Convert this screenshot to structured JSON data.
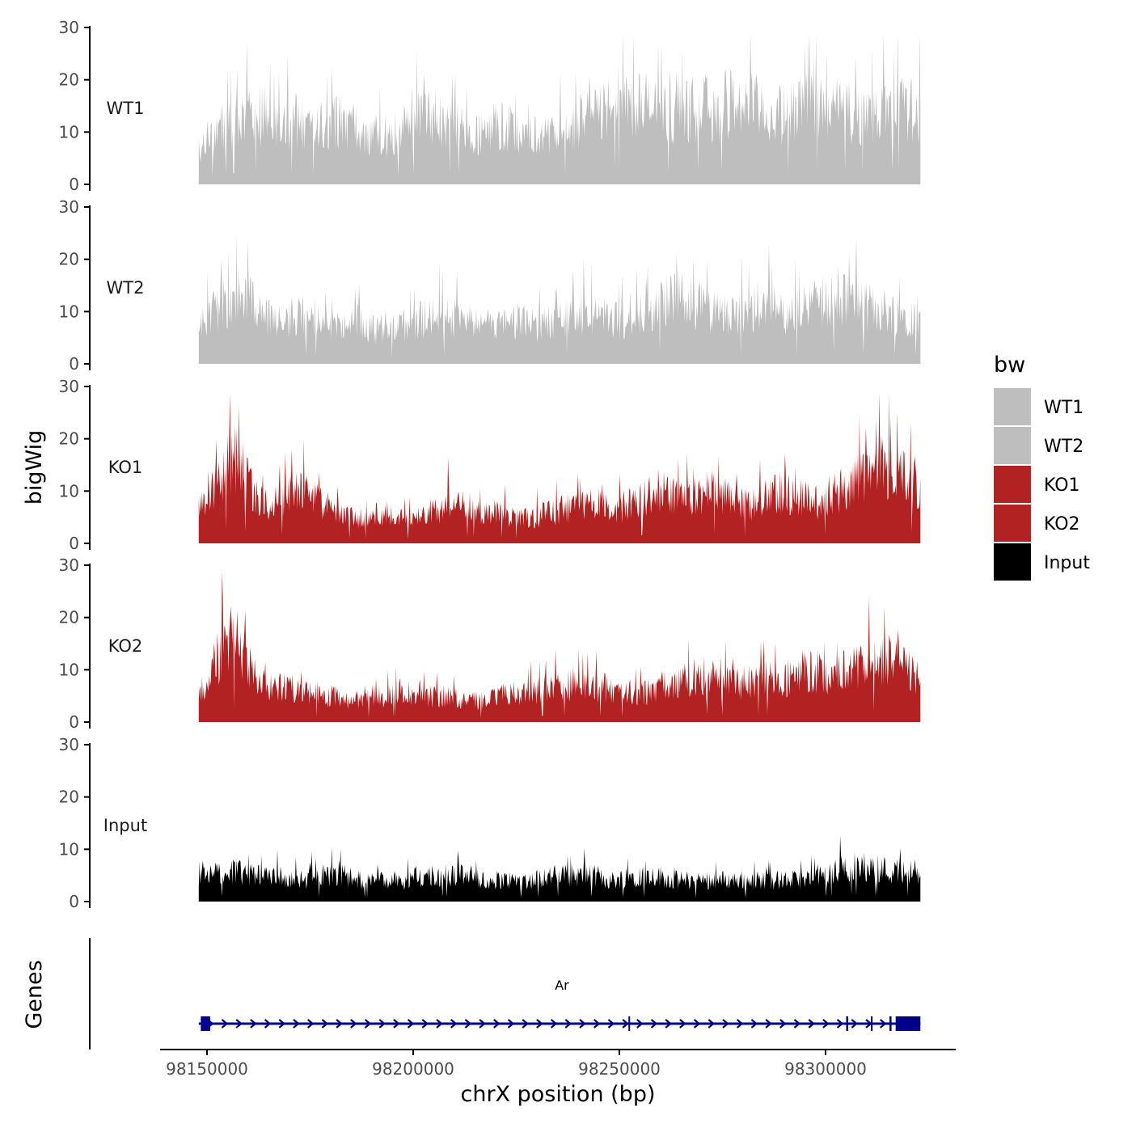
{
  "chart_data": {
    "type": "area",
    "title": "",
    "xlabel": "chrX position (bp)",
    "ylabel": "bigWig",
    "genes_axis_label": "Genes",
    "xlim": [
      98127000,
      98330000
    ],
    "data_xrange": [
      98148000,
      98323000
    ],
    "ylim": [
      0,
      30
    ],
    "y_ticks": [
      0,
      10,
      20,
      30
    ],
    "x_ticks": [
      98150000,
      98200000,
      98250000,
      98300000
    ],
    "x_tick_labels": [
      "98150000",
      "98200000",
      "98250000",
      "98300000"
    ],
    "series": [
      {
        "name": "WT1",
        "label": "WT1",
        "color": "#bebebe",
        "values": [
          8,
          11,
          13,
          14,
          15,
          16,
          16,
          15,
          14,
          15,
          14,
          13,
          14,
          15,
          14,
          13,
          12,
          12,
          11,
          12,
          13,
          15,
          16,
          15,
          14,
          13,
          12,
          12,
          13,
          14,
          13,
          12,
          11,
          11,
          12,
          13,
          14,
          15,
          16,
          18,
          19,
          20,
          19,
          18,
          17,
          16,
          16,
          17,
          18,
          17,
          18,
          19,
          19,
          18,
          17,
          16,
          16,
          17,
          18,
          19,
          18,
          18,
          17,
          16,
          16,
          17,
          18,
          18,
          17,
          17
        ]
      },
      {
        "name": "WT2",
        "label": "WT2",
        "color": "#bebebe",
        "values": [
          8,
          11,
          13,
          15,
          16,
          14,
          12,
          11,
          10,
          11,
          11,
          10,
          9,
          9,
          10,
          10,
          9,
          8,
          8,
          9,
          9,
          10,
          11,
          12,
          11,
          10,
          10,
          9,
          9,
          9,
          10,
          10,
          9,
          9,
          10,
          11,
          12,
          12,
          11,
          11,
          10,
          10,
          11,
          12,
          13,
          15,
          16,
          15,
          13,
          12,
          11,
          11,
          12,
          13,
          14,
          13,
          12,
          12,
          13,
          14,
          15,
          16,
          15,
          14,
          13,
          13,
          12,
          12,
          11,
          10
        ]
      },
      {
        "name": "KO1",
        "label": "KO1",
        "color": "#b22222",
        "values": [
          7,
          12,
          15,
          20,
          18,
          13,
          10,
          9,
          11,
          12,
          13,
          11,
          9,
          8,
          7,
          6,
          6,
          7,
          6,
          6,
          5,
          6,
          7,
          8,
          10,
          9,
          8,
          7,
          7,
          7,
          6,
          6,
          6,
          7,
          7,
          8,
          8,
          9,
          9,
          8,
          8,
          9,
          10,
          11,
          12,
          11,
          10,
          10,
          11,
          12,
          11,
          10,
          9,
          9,
          10,
          11,
          12,
          11,
          10,
          10,
          11,
          12,
          13,
          15,
          16,
          17,
          18,
          17,
          15,
          13
        ]
      },
      {
        "name": "KO2",
        "label": "KO2",
        "color": "#b22222",
        "values": [
          5,
          10,
          16,
          20,
          17,
          12,
          9,
          8,
          8,
          8,
          7,
          7,
          6,
          6,
          5,
          5,
          6,
          6,
          6,
          7,
          7,
          7,
          6,
          6,
          6,
          5,
          5,
          5,
          6,
          6,
          7,
          7,
          7,
          8,
          8,
          8,
          9,
          9,
          8,
          8,
          7,
          7,
          7,
          7,
          8,
          9,
          10,
          10,
          11,
          10,
          9,
          9,
          9,
          10,
          10,
          10,
          10,
          11,
          12,
          12,
          11,
          11,
          12,
          13,
          14,
          15,
          14,
          13,
          12,
          10
        ]
      },
      {
        "name": "Input",
        "label": "Input",
        "color": "#000000",
        "values": [
          5,
          6,
          7,
          7,
          7,
          6,
          6,
          6,
          6,
          5,
          5,
          6,
          6,
          6,
          6,
          5,
          5,
          5,
          5,
          5,
          5,
          6,
          6,
          6,
          6,
          6,
          6,
          5,
          5,
          5,
          5,
          5,
          5,
          6,
          6,
          6,
          6,
          6,
          6,
          5,
          5,
          6,
          6,
          6,
          6,
          5,
          5,
          5,
          5,
          5,
          5,
          5,
          5,
          5,
          5,
          5,
          5,
          5,
          5,
          6,
          6,
          7,
          8,
          8,
          8,
          8,
          7,
          7,
          7,
          5
        ]
      }
    ],
    "gene": {
      "name": "Ar",
      "start": 98148000,
      "end": 98323000,
      "strand": "+",
      "exons": [
        [
          98148500,
          98150800
        ],
        [
          98252200,
          98252600
        ],
        [
          98305000,
          98305500
        ],
        [
          98311000,
          98311400
        ],
        [
          98315500,
          98316000
        ],
        [
          98317000,
          98323000
        ]
      ],
      "color": "#00008b"
    },
    "legend": {
      "title": "bw",
      "position": "right",
      "entries": [
        {
          "label": "WT1",
          "color": "#bebebe"
        },
        {
          "label": "WT2",
          "color": "#bebebe"
        },
        {
          "label": "KO1",
          "color": "#b22222"
        },
        {
          "label": "KO2",
          "color": "#b22222"
        },
        {
          "label": "Input",
          "color": "#000000"
        }
      ]
    }
  }
}
